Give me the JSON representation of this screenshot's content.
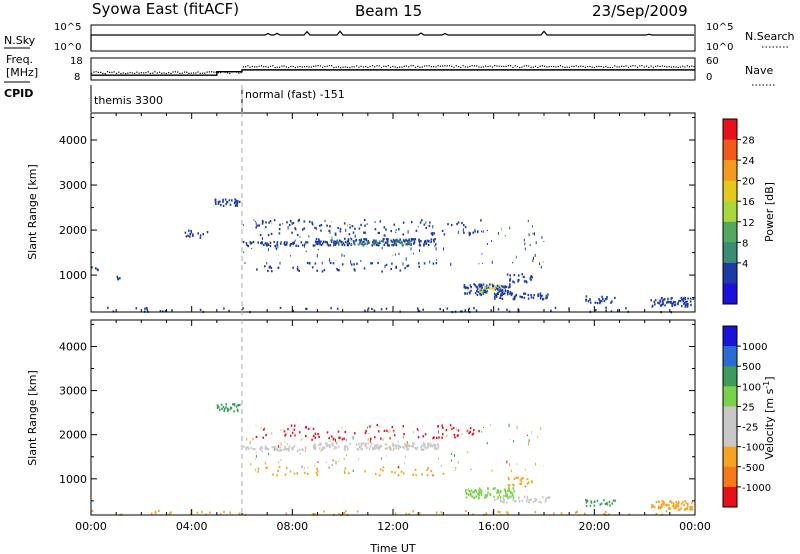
{
  "header": {
    "title": "Syowa East (fitACF)",
    "beam": "Beam 15",
    "date": "23/Sep/2009"
  },
  "summary": {
    "nsky_label": "N.Sky",
    "nsearch_label": "N.Search",
    "nsky_ticks": [
      "10^5",
      "10^0"
    ],
    "nsearch_ticks": [
      "10^5",
      "10^0"
    ],
    "freq_label_lines": [
      "Freq.",
      "[MHz]"
    ],
    "freq_ticks": [
      "18",
      "8"
    ],
    "nave_label": "Nave",
    "nave_ticks": [
      "60",
      "0"
    ],
    "cpid_label": "CPID",
    "cpid_segments": [
      {
        "name": "themis 3300",
        "start_h": 0,
        "end_h": 6
      },
      {
        "name": "normal (fast) -151",
        "start_h": 6,
        "end_h": 24
      }
    ],
    "freq_series": [
      {
        "start_h": 0,
        "end_h": 5,
        "mhz": 10.2
      },
      {
        "start_h": 5,
        "end_h": 6,
        "mhz": 11.8
      },
      {
        "start_h": 6,
        "end_h": 24,
        "mhz": 12.6
      }
    ]
  },
  "chart_data": [
    {
      "type": "heatmap",
      "name": "power",
      "ylabel": "Slant Range [km]",
      "xlabel": "",
      "x_ticks": [
        "00:00",
        "04:00",
        "08:00",
        "12:00",
        "16:00",
        "20:00",
        "00:00"
      ],
      "x_range_h": [
        0,
        24
      ],
      "ylim": [
        180,
        4600
      ],
      "y_ticks": [
        1000,
        2000,
        3000,
        4000
      ],
      "colorbar": {
        "label": "Power [dB]",
        "ticks": [
          "28",
          "24",
          "20",
          "16",
          "12",
          "8",
          "4"
        ],
        "colors": [
          "#e8101a",
          "#f4591c",
          "#f59a21",
          "#e6c81c",
          "#a8d93c",
          "#52a85c",
          "#3a8c74",
          "#1e3aa8",
          "#1b12d9"
        ]
      },
      "blobs": [
        {
          "t0": 0.0,
          "t1": 0.3,
          "r0": 1080,
          "r1": 1200,
          "color": "#1e3aa8",
          "density": 0.5
        },
        {
          "t0": 1.0,
          "t1": 1.3,
          "r0": 930,
          "r1": 990,
          "color": "#1e3aa8",
          "density": 0.6
        },
        {
          "t0": 4.9,
          "t1": 5.9,
          "r0": 2550,
          "r1": 2720,
          "color": "#1e3aa8",
          "density": 0.8
        },
        {
          "t0": 3.6,
          "t1": 4.6,
          "r0": 1850,
          "r1": 2020,
          "color": "#1e3aa8",
          "density": 0.4
        },
        {
          "t0": 6.0,
          "t1": 8.6,
          "r0": 1660,
          "r1": 1760,
          "color": "#1e3aa8",
          "density": 0.8
        },
        {
          "t0": 8.8,
          "t1": 13.8,
          "r0": 1680,
          "r1": 1830,
          "color": "#1e3aa8",
          "density": 0.9
        },
        {
          "t0": 9.5,
          "t1": 12.8,
          "r0": 1700,
          "r1": 1800,
          "color": "#3a8c74",
          "density": 0.55
        },
        {
          "t0": 6.5,
          "t1": 14.0,
          "r0": 1100,
          "r1": 1300,
          "color": "#1e3aa8",
          "density": 0.15
        },
        {
          "t0": 6.5,
          "t1": 15.5,
          "r0": 1900,
          "r1": 2250,
          "color": "#1e3aa8",
          "density": 0.14
        },
        {
          "t0": 14.8,
          "t1": 16.8,
          "r0": 580,
          "r1": 820,
          "color": "#1e3aa8",
          "density": 0.85
        },
        {
          "t0": 15.4,
          "t1": 16.3,
          "r0": 620,
          "r1": 800,
          "color": "#a8d93c",
          "density": 0.4
        },
        {
          "t0": 15.6,
          "t1": 16.0,
          "r0": 650,
          "r1": 760,
          "color": "#e6c81c",
          "density": 0.3
        },
        {
          "t0": 16.5,
          "t1": 17.5,
          "r0": 850,
          "r1": 1050,
          "color": "#1e3aa8",
          "density": 0.5
        },
        {
          "t0": 16.0,
          "t1": 18.2,
          "r0": 480,
          "r1": 620,
          "color": "#1e3aa8",
          "density": 0.7
        },
        {
          "t0": 19.6,
          "t1": 20.8,
          "r0": 400,
          "r1": 560,
          "color": "#1e3aa8",
          "density": 0.55
        },
        {
          "t0": 22.2,
          "t1": 23.9,
          "r0": 320,
          "r1": 520,
          "color": "#1e3aa8",
          "density": 0.9
        },
        {
          "t0": 0.0,
          "t1": 24.0,
          "r0": 200,
          "r1": 300,
          "color": "#1e3aa8",
          "density": 0.12
        }
      ]
    },
    {
      "type": "heatmap",
      "name": "velocity",
      "ylabel": "Slant Range [km]",
      "xlabel": "Time UT",
      "x_ticks": [
        "00:00",
        "04:00",
        "08:00",
        "12:00",
        "16:00",
        "20:00",
        "00:00"
      ],
      "x_range_h": [
        0,
        24
      ],
      "ylim": [
        180,
        4600
      ],
      "y_ticks": [
        1000,
        2000,
        3000,
        4000
      ],
      "colorbar": {
        "label": "Velocity [m s-1]",
        "ticks": [
          "1000",
          "500",
          "100",
          "25",
          "-25",
          "-100",
          "-500",
          "-1000"
        ],
        "colors": [
          "#1b12d9",
          "#2b6bd4",
          "#3c9c5a",
          "#7ad24a",
          "#c8c8c8",
          "#c8c8c8",
          "#f5a321",
          "#f47a1c",
          "#e8101a"
        ]
      },
      "blobs": [
        {
          "t0": 4.9,
          "t1": 5.9,
          "r0": 2550,
          "r1": 2720,
          "color": "#3c9c5a",
          "density": 0.8
        },
        {
          "t0": 6.0,
          "t1": 8.6,
          "r0": 1660,
          "r1": 1760,
          "color": "#c8c8c8",
          "density": 0.8
        },
        {
          "t0": 8.8,
          "t1": 13.8,
          "r0": 1680,
          "r1": 1830,
          "color": "#c8c8c8",
          "density": 0.9
        },
        {
          "t0": 6.5,
          "t1": 14.0,
          "r0": 1100,
          "r1": 1300,
          "color": "#f5a321",
          "density": 0.14
        },
        {
          "t0": 6.5,
          "t1": 15.5,
          "r0": 1900,
          "r1": 2250,
          "color": "#e8101a",
          "density": 0.12
        },
        {
          "t0": 14.8,
          "t1": 16.8,
          "r0": 580,
          "r1": 820,
          "color": "#7ad24a",
          "density": 0.8
        },
        {
          "t0": 16.5,
          "t1": 17.5,
          "r0": 850,
          "r1": 1050,
          "color": "#f5a321",
          "density": 0.5
        },
        {
          "t0": 16.0,
          "t1": 18.2,
          "r0": 480,
          "r1": 620,
          "color": "#c8c8c8",
          "density": 0.6
        },
        {
          "t0": 19.6,
          "t1": 20.8,
          "r0": 400,
          "r1": 560,
          "color": "#3c9c5a",
          "density": 0.55
        },
        {
          "t0": 22.2,
          "t1": 23.9,
          "r0": 320,
          "r1": 520,
          "color": "#f5a321",
          "density": 0.9
        },
        {
          "t0": 0.0,
          "t1": 24.0,
          "r0": 200,
          "r1": 300,
          "color": "#f5a321",
          "density": 0.12
        }
      ]
    }
  ]
}
